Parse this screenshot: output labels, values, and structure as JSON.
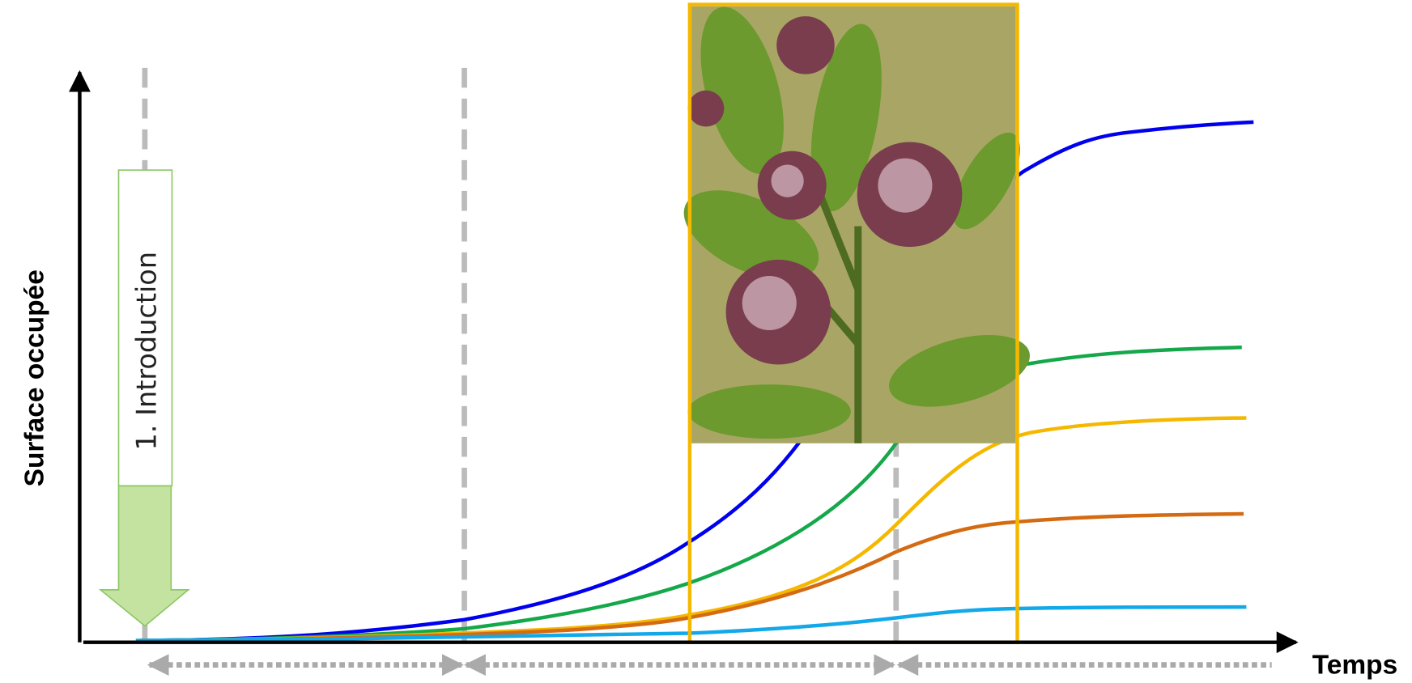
{
  "axes": {
    "y_label": "Surface occupée",
    "x_label": "Temps"
  },
  "phases": [
    {
      "label": "1. Introduction"
    }
  ]
}
